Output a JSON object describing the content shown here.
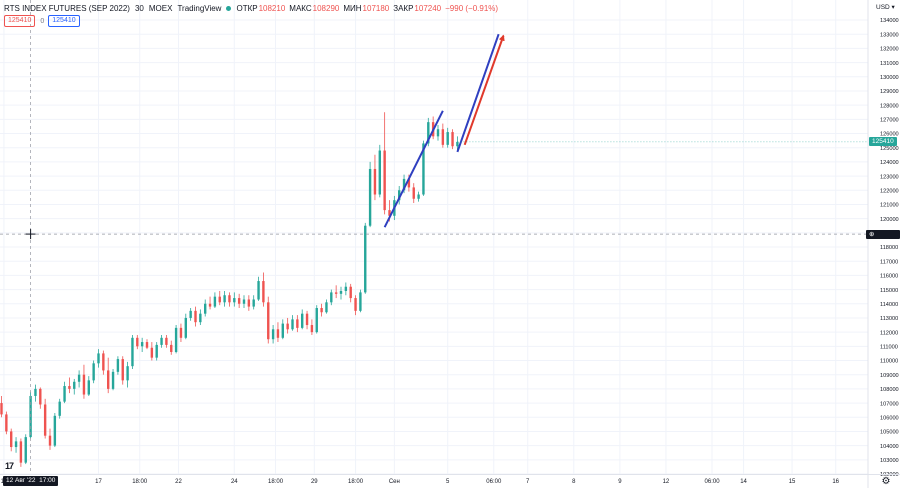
{
  "legend": {
    "symbol": "RTS INDEX FUTURES (SEP 2022)",
    "interval": "30",
    "exchange": "MOEX",
    "source": "TradingView",
    "open_label": "ОТКР",
    "open": "108210",
    "high_label": "МАКС",
    "high": "108290",
    "low_label": "МИН",
    "low": "107180",
    "close_label": "ЗАКР",
    "close": "107240",
    "change": "−990 (−0.91%)",
    "bid_box": "125410",
    "zero": "0",
    "ask_box": "125410"
  },
  "axis": {
    "currency": "USD",
    "current_price": "125410",
    "crosshair_price": "118910",
    "crosshair_time": "12 Авг '22  17:00",
    "crosshair_time_label": "12 Авг '22",
    "crosshair_time_hour": "17:00"
  },
  "colors": {
    "up": "#26a69a",
    "down": "#ef5350",
    "blue_arrow": "#2f3fc0",
    "red_arrow": "#e0392b",
    "price_tag": "#26a69a",
    "crosshair_tag": "#131722"
  },
  "icons": [
    "crosshair-icon",
    "settings-gear-icon",
    "tradingview-logo-icon",
    "market-status-dot-icon"
  ],
  "chart_data": {
    "type": "candlestick",
    "title": "RTS INDEX FUTURES (SEP 2022)",
    "ylim": [
      101500,
      135000
    ],
    "y_ticks": [
      102000,
      103000,
      104000,
      105000,
      106000,
      107000,
      108000,
      109000,
      110000,
      111000,
      112000,
      113000,
      114000,
      115000,
      116000,
      117000,
      118000,
      119000,
      120000,
      121000,
      122000,
      123000,
      124000,
      125000,
      126000,
      127000,
      128000,
      129000,
      130000,
      131000,
      132000,
      133000,
      134000
    ],
    "x_ticks": [
      {
        "label": "15",
        "x": 0.5
      },
      {
        "label": "17",
        "x": 20
      },
      {
        "label": "18:00",
        "x": 28.5
      },
      {
        "label": "22",
        "x": 36.5
      },
      {
        "label": "24",
        "x": 48
      },
      {
        "label": "18:00",
        "x": 56.5
      },
      {
        "label": "29",
        "x": 64.5
      },
      {
        "label": "18:00",
        "x": 73
      },
      {
        "label": "Сен",
        "x": 81
      },
      {
        "label": "5",
        "x": 92
      },
      {
        "label": "06:00",
        "x": 101.5
      },
      {
        "label": "7",
        "x": 108.5
      },
      {
        "label": "8",
        "x": 118
      },
      {
        "label": "9",
        "x": 127.5
      },
      {
        "label": "12",
        "x": 137
      },
      {
        "label": "06:00",
        "x": 146.5
      },
      {
        "label": "14",
        "x": 153
      },
      {
        "label": "15",
        "x": 163
      },
      {
        "label": "16",
        "x": 172
      }
    ],
    "candles": [
      [
        0,
        107000,
        107500,
        106000,
        106200
      ],
      [
        1,
        106200,
        106400,
        104800,
        105000
      ],
      [
        2,
        105000,
        105200,
        103600,
        103900
      ],
      [
        3,
        103900,
        104600,
        103500,
        104300
      ],
      [
        4,
        104300,
        104500,
        102500,
        102800
      ],
      [
        5,
        102800,
        104800,
        102700,
        104600
      ],
      [
        6,
        104600,
        107800,
        104500,
        107500
      ],
      [
        7,
        107500,
        108300,
        107100,
        108000
      ],
      [
        8,
        108000,
        108100,
        106600,
        106900
      ],
      [
        9,
        106900,
        107300,
        104500,
        104700
      ],
      [
        10,
        104700,
        105200,
        103700,
        104000
      ],
      [
        11,
        104000,
        106300,
        103900,
        106100
      ],
      [
        12,
        106100,
        107300,
        105900,
        107100
      ],
      [
        13,
        107100,
        108500,
        107000,
        108200
      ],
      [
        14,
        108200,
        108800,
        107700,
        108000
      ],
      [
        15,
        108000,
        108700,
        107600,
        108500
      ],
      [
        16,
        108500,
        109300,
        108100,
        109000
      ],
      [
        17,
        109000,
        109700,
        107300,
        107600
      ],
      [
        18,
        107600,
        108900,
        107500,
        108600
      ],
      [
        19,
        108600,
        110000,
        108400,
        109800
      ],
      [
        20,
        109800,
        110800,
        109500,
        110500
      ],
      [
        21,
        110500,
        110700,
        109000,
        109300
      ],
      [
        22,
        109300,
        110200,
        107700,
        108000
      ],
      [
        23,
        108000,
        109400,
        107900,
        109200
      ],
      [
        24,
        109200,
        110300,
        109000,
        110100
      ],
      [
        25,
        110100,
        110300,
        108300,
        108600
      ],
      [
        26,
        108600,
        109900,
        108100,
        109600
      ],
      [
        27,
        109600,
        111800,
        109400,
        111600
      ],
      [
        28,
        111600,
        111800,
        110800,
        111000
      ],
      [
        29,
        111000,
        111600,
        110600,
        111300
      ],
      [
        30,
        111300,
        111500,
        110800,
        110900
      ],
      [
        31,
        110900,
        111300,
        110000,
        110200
      ],
      [
        32,
        110200,
        111300,
        110000,
        111100
      ],
      [
        33,
        111100,
        111800,
        110900,
        111600
      ],
      [
        34,
        111600,
        111800,
        110900,
        111100
      ],
      [
        35,
        111100,
        111400,
        110400,
        110600
      ],
      [
        36,
        110600,
        112500,
        110500,
        112300
      ],
      [
        37,
        112300,
        112600,
        111300,
        111600
      ],
      [
        38,
        111600,
        113300,
        111500,
        113000
      ],
      [
        39,
        113000,
        113700,
        112800,
        113500
      ],
      [
        40,
        113500,
        113800,
        112400,
        112700
      ],
      [
        41,
        112700,
        113600,
        112500,
        113300
      ],
      [
        42,
        113300,
        114300,
        113100,
        114000
      ],
      [
        43,
        114000,
        114500,
        113600,
        113800
      ],
      [
        44,
        113800,
        114800,
        113700,
        114500
      ],
      [
        45,
        114500,
        114900,
        113900,
        114100
      ],
      [
        46,
        114100,
        114900,
        113800,
        114600
      ],
      [
        47,
        114600,
        114800,
        113800,
        114100
      ],
      [
        48,
        114100,
        114800,
        113800,
        114400
      ],
      [
        49,
        114400,
        114700,
        113700,
        114000
      ],
      [
        50,
        114000,
        114600,
        113700,
        114300
      ],
      [
        51,
        114300,
        114600,
        113500,
        113800
      ],
      [
        52,
        113800,
        114600,
        113600,
        114300
      ],
      [
        53,
        114300,
        115900,
        114200,
        115600
      ],
      [
        54,
        115600,
        116200,
        113800,
        114100
      ],
      [
        55,
        114100,
        114500,
        111200,
        111500
      ],
      [
        56,
        111500,
        112500,
        111200,
        112200
      ],
      [
        57,
        112200,
        112700,
        111300,
        111600
      ],
      [
        58,
        111600,
        112900,
        111500,
        112600
      ],
      [
        59,
        112600,
        113000,
        111900,
        112200
      ],
      [
        60,
        112200,
        113200,
        112100,
        112900
      ],
      [
        61,
        112900,
        113200,
        112000,
        112300
      ],
      [
        62,
        112300,
        113600,
        112200,
        113300
      ],
      [
        63,
        113300,
        113500,
        112200,
        112500
      ],
      [
        64,
        112500,
        112900,
        111800,
        112000
      ],
      [
        65,
        112000,
        113900,
        111900,
        113700
      ],
      [
        66,
        113700,
        114000,
        113100,
        113400
      ],
      [
        67,
        113400,
        114300,
        113300,
        114100
      ],
      [
        68,
        114100,
        115000,
        113900,
        114800
      ],
      [
        69,
        114800,
        115300,
        114400,
        114700
      ],
      [
        70,
        114700,
        115200,
        114300,
        114900
      ],
      [
        71,
        114900,
        115500,
        114600,
        115200
      ],
      [
        72,
        115200,
        115400,
        114100,
        114400
      ],
      [
        73,
        114400,
        114600,
        113200,
        113500
      ],
      [
        74,
        113500,
        115000,
        113400,
        114800
      ],
      [
        75,
        114800,
        119700,
        114700,
        119500
      ],
      [
        76,
        119500,
        124000,
        119400,
        123500
      ],
      [
        77,
        123500,
        124500,
        121300,
        121700
      ],
      [
        78,
        121700,
        125200,
        121500,
        124800
      ],
      [
        79,
        124800,
        127500,
        120300,
        120600
      ],
      [
        80,
        120600,
        121300,
        119800,
        120200
      ],
      [
        81,
        120200,
        121600,
        119900,
        121300
      ],
      [
        82,
        121300,
        122300,
        121000,
        122000
      ],
      [
        83,
        122000,
        123100,
        121800,
        122800
      ],
      [
        84,
        122800,
        123100,
        121900,
        122200
      ],
      [
        85,
        122200,
        122500,
        121100,
        121400
      ],
      [
        86,
        121400,
        121900,
        121200,
        121700
      ],
      [
        87,
        121700,
        125500,
        121600,
        125300
      ],
      [
        88,
        125300,
        127100,
        125100,
        126800
      ],
      [
        89,
        126800,
        127200,
        125600,
        125800
      ],
      [
        90,
        125800,
        126600,
        125500,
        126300
      ],
      [
        91,
        126300,
        126700,
        125000,
        125200
      ],
      [
        92,
        125200,
        126400,
        125000,
        126100
      ],
      [
        93,
        126100,
        126300,
        124900,
        125100
      ],
      [
        94,
        125100,
        125800,
        124800,
        125410
      ]
    ],
    "drawn_lines": [
      {
        "name": "blue-arrow",
        "from": {
          "x": 79,
          "y": 119400
        },
        "to": {
          "x": 91,
          "y": 127600
        }
      },
      {
        "name": "blue-arrow-2",
        "from": {
          "x": 94,
          "y": 124700
        },
        "to": {
          "x": 102.5,
          "y": 133000
        }
      },
      {
        "name": "red-arrow",
        "from": {
          "x": 95.5,
          "y": 125200
        },
        "to": {
          "x": 103.5,
          "y": 132900
        }
      }
    ],
    "crosshair": {
      "x": 6,
      "y": 118910
    }
  }
}
